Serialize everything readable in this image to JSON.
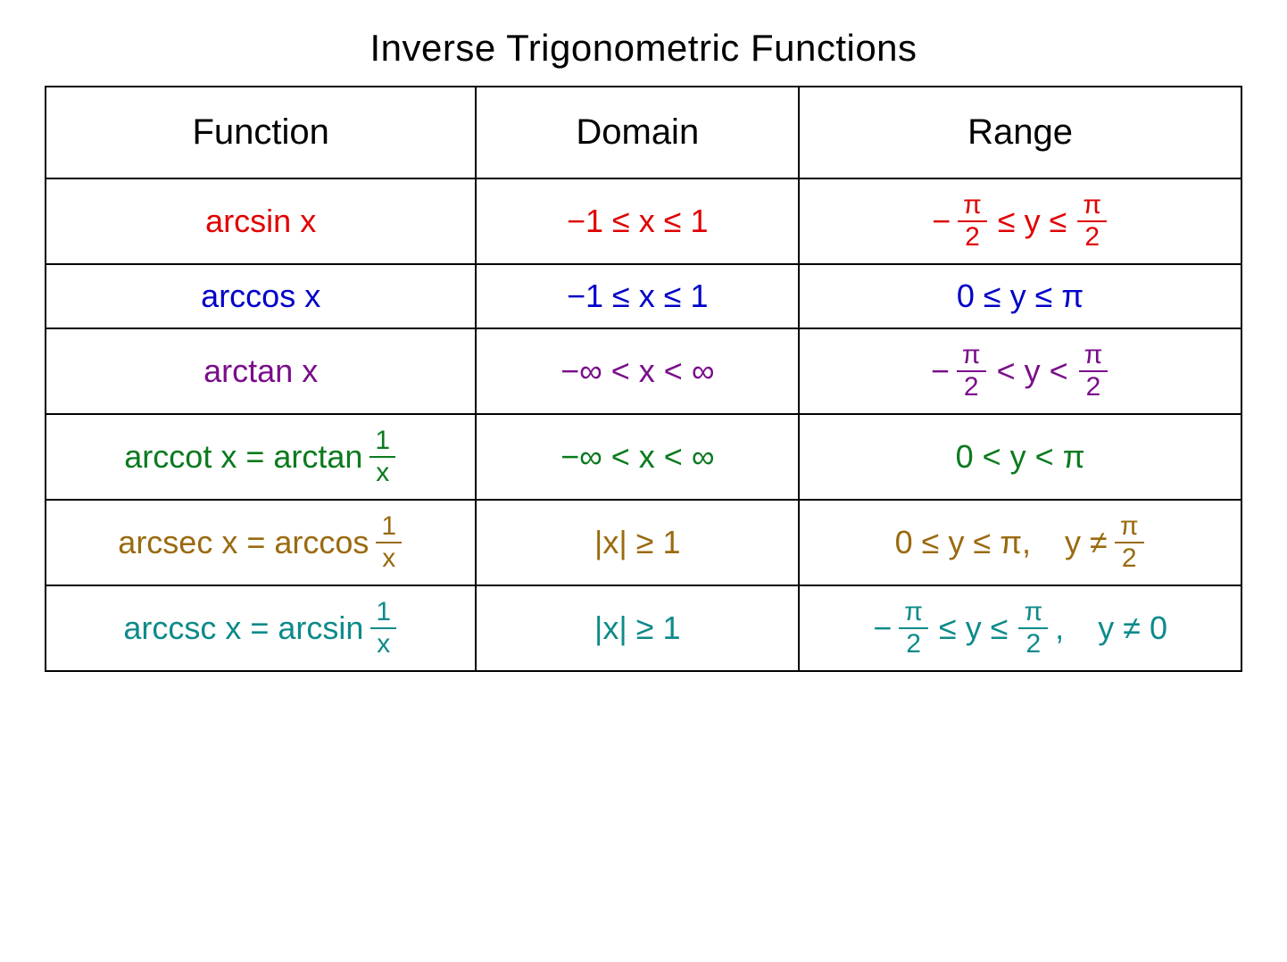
{
  "title": "Inverse Trigonometric Functions",
  "columns": [
    "Function",
    "Domain",
    "Range"
  ],
  "background_color": "#ffffff",
  "border_color": "#000000",
  "title_color": "#000000",
  "title_fontsize": 42,
  "header_fontsize": 40,
  "cell_fontsize": 36,
  "frac_fontsize": 30,
  "column_widths_pct": [
    36,
    27,
    37
  ],
  "rows": [
    {
      "color": "#e00000",
      "function_plain": "arcsin x",
      "function_has_fraction": false,
      "domain": "−1 ≤ x ≤ 1",
      "range": {
        "type": "frac_bounds",
        "prefix_neg": true,
        "left_num": "π",
        "left_den": "2",
        "left_rel": "≤",
        "mid": "y",
        "right_rel": "≤",
        "right_num": "π",
        "right_den": "2",
        "extra": null
      }
    },
    {
      "color": "#0000c8",
      "function_plain": "arccos x",
      "function_has_fraction": false,
      "domain": "−1 ≤ x ≤ 1",
      "range": {
        "type": "plain",
        "text": "0 ≤ y ≤ π"
      }
    },
    {
      "color": "#7a0e8a",
      "function_plain": "arctan x",
      "function_has_fraction": false,
      "domain": "−∞ < x < ∞",
      "range": {
        "type": "frac_bounds",
        "prefix_neg": true,
        "left_num": "π",
        "left_den": "2",
        "left_rel": "<",
        "mid": "y",
        "right_rel": "<",
        "right_num": "π",
        "right_den": "2",
        "extra": null
      }
    },
    {
      "color": "#0a7a1e",
      "function_plain": "arccot x = arctan",
      "function_has_fraction": true,
      "function_frac_num": "1",
      "function_frac_den": "x",
      "domain": "−∞ < x < ∞",
      "range": {
        "type": "plain",
        "text": "0 < y < π"
      }
    },
    {
      "color": "#9a6a10",
      "function_plain": "arcsec x = arccos",
      "function_has_fraction": true,
      "function_frac_num": "1",
      "function_frac_den": "x",
      "domain": "|x| ≥ 1",
      "range": {
        "type": "plain_with_extra_frac",
        "text": "0 ≤ y ≤ π,",
        "extra_lead": "y ≠",
        "extra_num": "π",
        "extra_den": "2"
      }
    },
    {
      "color": "#0e8a8a",
      "function_plain": "arccsc x = arcsin",
      "function_has_fraction": true,
      "function_frac_num": "1",
      "function_frac_den": "x",
      "domain": "|x| ≥ 1",
      "range": {
        "type": "frac_bounds",
        "prefix_neg": true,
        "left_num": "π",
        "left_den": "2",
        "left_rel": "≤",
        "mid": "y",
        "right_rel": "≤",
        "right_num": "π",
        "right_den": "2",
        "extra": "y ≠ 0",
        "trailing_comma": ","
      }
    }
  ]
}
